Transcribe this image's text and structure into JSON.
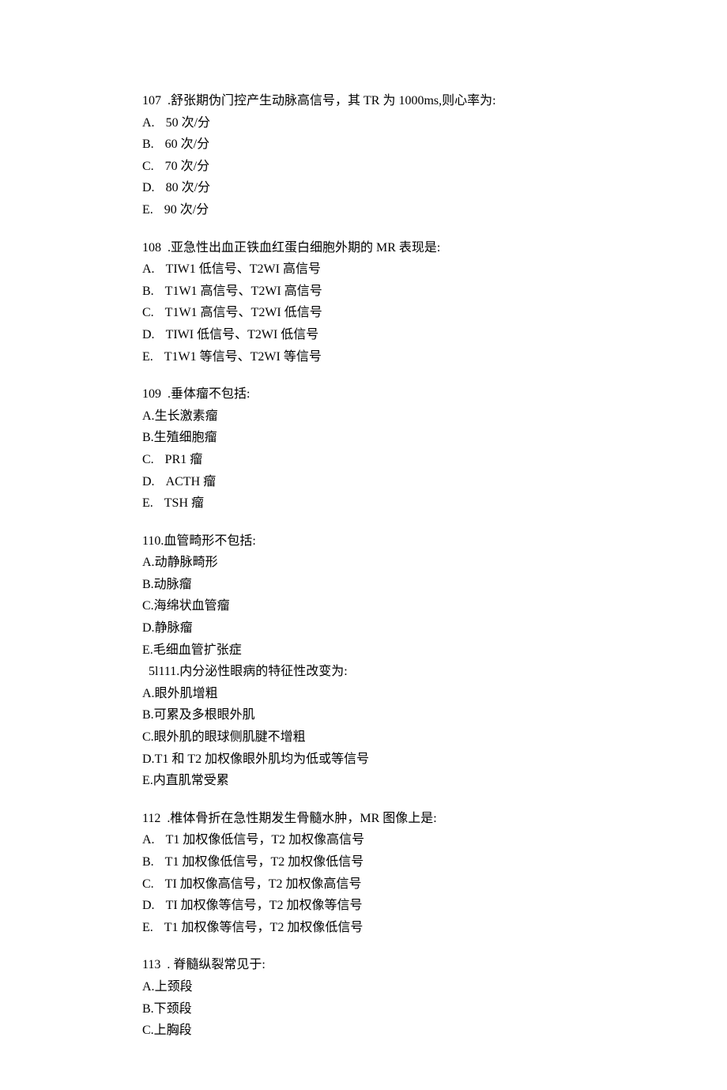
{
  "questions": [
    {
      "number": "107",
      "numSep": "  .",
      "stem": "舒张期伪门控产生动脉高信号，其 TR 为 1000ms,则心率为:",
      "options": [
        {
          "marker": "A.",
          "wide": true,
          "text": "50 次/分"
        },
        {
          "marker": "B.",
          "wide": true,
          "text": "60 次/分"
        },
        {
          "marker": "C.",
          "wide": true,
          "text": "70 次/分"
        },
        {
          "marker": "D.",
          "wide": true,
          "text": "80 次/分"
        },
        {
          "marker": "E.",
          "wide": true,
          "text": "90 次/分"
        }
      ],
      "gapAfter": true
    },
    {
      "number": "108",
      "numSep": "  .",
      "stem": "亚急性出血正铁血红蛋白细胞外期的 MR 表现是:",
      "options": [
        {
          "marker": "A.",
          "wide": true,
          "text": "TIW1 低信号、T2WI 高信号"
        },
        {
          "marker": "B.",
          "wide": true,
          "text": "T1W1 高信号、T2WI 高信号"
        },
        {
          "marker": "C.",
          "wide": true,
          "text": "T1W1 高信号、T2WI 低信号"
        },
        {
          "marker": "D.",
          "wide": true,
          "text": "TIWI 低信号、T2WI 低信号"
        },
        {
          "marker": "E.",
          "wide": true,
          "text": "T1W1 等信号、T2WI 等信号"
        }
      ],
      "gapAfter": true
    },
    {
      "number": "109",
      "numSep": "  .",
      "stem": "垂体瘤不包括:",
      "options": [
        {
          "marker": "A.",
          "wide": false,
          "text": "生长激素瘤"
        },
        {
          "marker": "B.",
          "wide": false,
          "text": "生殖细胞瘤"
        },
        {
          "marker": "C.",
          "wide": true,
          "text": "PR1 瘤"
        },
        {
          "marker": "D.",
          "wide": true,
          "text": "ACTH 瘤"
        },
        {
          "marker": "E.",
          "wide": true,
          "text": "TSH 瘤"
        }
      ],
      "gapAfter": true
    },
    {
      "number": "110",
      "numSep": ".",
      "stem": "血管畸形不包括:",
      "options": [
        {
          "marker": "A.",
          "wide": false,
          "text": "动静脉畸形"
        },
        {
          "marker": "B.",
          "wide": false,
          "text": "动脉瘤"
        },
        {
          "marker": "C.",
          "wide": false,
          "text": "海绵状血管瘤"
        },
        {
          "marker": "D.",
          "wide": false,
          "text": "静脉瘤"
        },
        {
          "marker": "E.",
          "wide": false,
          "text": "毛细血管扩张症"
        }
      ],
      "gapAfter": false
    },
    {
      "prefix": "  ­5l",
      "number": "111",
      "numSep": ".",
      "stem": "内分泌性眼病的特征性改变为:",
      "options": [
        {
          "marker": "A.",
          "wide": false,
          "text": "眼外肌增粗"
        },
        {
          "marker": "B.",
          "wide": false,
          "text": "可累及多根眼外肌"
        },
        {
          "marker": "C.",
          "wide": false,
          "text": "眼外肌的眼球侧肌腱不增粗"
        },
        {
          "marker": "D.",
          "wide": false,
          "text": "T1 和 T2 加权像眼外肌均为低或等信号"
        },
        {
          "marker": "E.",
          "wide": false,
          "text": "内直肌常受累"
        }
      ],
      "gapAfter": true
    },
    {
      "number": "112",
      "numSep": "  .",
      "stem": "椎体骨折在急性期发生骨髓水肿，MR 图像上是:",
      "options": [
        {
          "marker": "A.",
          "wide": true,
          "text": "T1 加权像低信号，T2 加权像高信号"
        },
        {
          "marker": "B.",
          "wide": true,
          "text": "T1 加权像低信号，T2 加权像低信号"
        },
        {
          "marker": "C.",
          "wide": true,
          "text": "TI 加权像高信号，T2 加权像高信号"
        },
        {
          "marker": "D.",
          "wide": true,
          "text": "TI 加权像等信号，T2 加权像等信号"
        },
        {
          "marker": "E.",
          "wide": true,
          "text": "T1 加权像等信号，T2 加权像低信号"
        }
      ],
      "gapAfter": true
    },
    {
      "number": "113",
      "numSep": "  . ",
      "stem": "脊髓纵裂常见于:",
      "options": [
        {
          "marker": "A.",
          "wide": false,
          "text": "上颈段"
        },
        {
          "marker": "B.",
          "wide": false,
          "text": "下颈段"
        },
        {
          "marker": "C.",
          "wide": false,
          "text": "上胸段"
        }
      ],
      "gapAfter": false
    }
  ]
}
